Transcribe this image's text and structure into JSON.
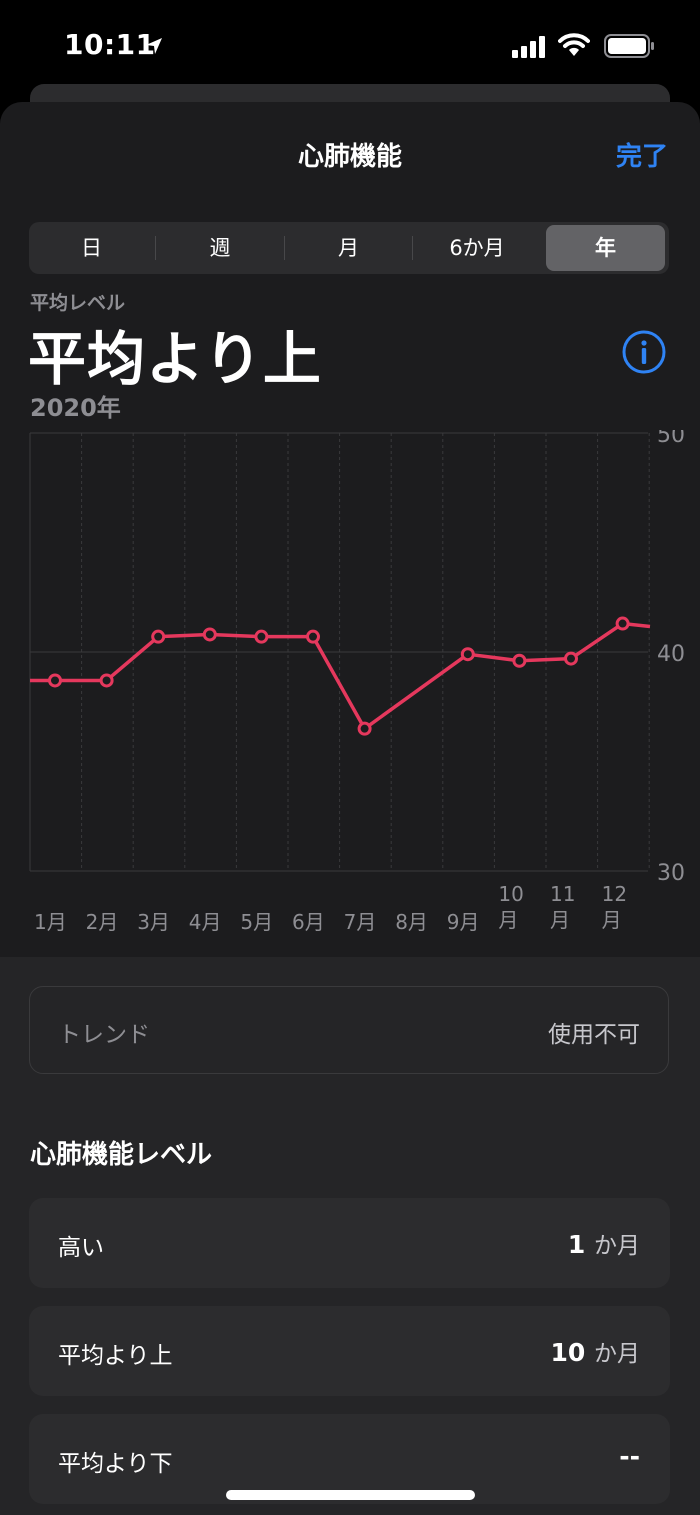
{
  "status": {
    "time": "10:11"
  },
  "nav": {
    "title": "心肺機能",
    "done": "完了"
  },
  "segments": [
    {
      "label": "日",
      "selected": false
    },
    {
      "label": "週",
      "selected": false
    },
    {
      "label": "月",
      "selected": false
    },
    {
      "label": "6か月",
      "selected": false
    },
    {
      "label": "年",
      "selected": true
    }
  ],
  "summary": {
    "label": "平均レベル",
    "value": "平均より上",
    "period": "2020年"
  },
  "chart_data": {
    "type": "line",
    "categories": [
      "1月",
      "2月",
      "3月",
      "4月",
      "5月",
      "6月",
      "7月",
      "8月",
      "9月",
      "10\n月",
      "11\n月",
      "12\n月"
    ],
    "series": [
      {
        "values": [
          38.7,
          38.7,
          40.7,
          40.8,
          40.7,
          40.7,
          36.5,
          null,
          39.9,
          39.6,
          39.7,
          41.3
        ]
      }
    ],
    "ylim": [
      30,
      50
    ],
    "yticks": [
      50,
      40,
      30
    ],
    "line_color": "#e5385d",
    "grid": true
  },
  "trend": {
    "label": "トレンド",
    "value": "使用不可"
  },
  "levels": {
    "title": "心肺機能レベル",
    "items": [
      {
        "label": "高い",
        "num": "1",
        "unit": "か月"
      },
      {
        "label": "平均より上",
        "num": "10",
        "unit": "か月"
      },
      {
        "label": "平均より下",
        "num": "--",
        "unit": ""
      }
    ]
  },
  "colors": {
    "accent": "#2f83f4",
    "series": "#e5385d"
  }
}
